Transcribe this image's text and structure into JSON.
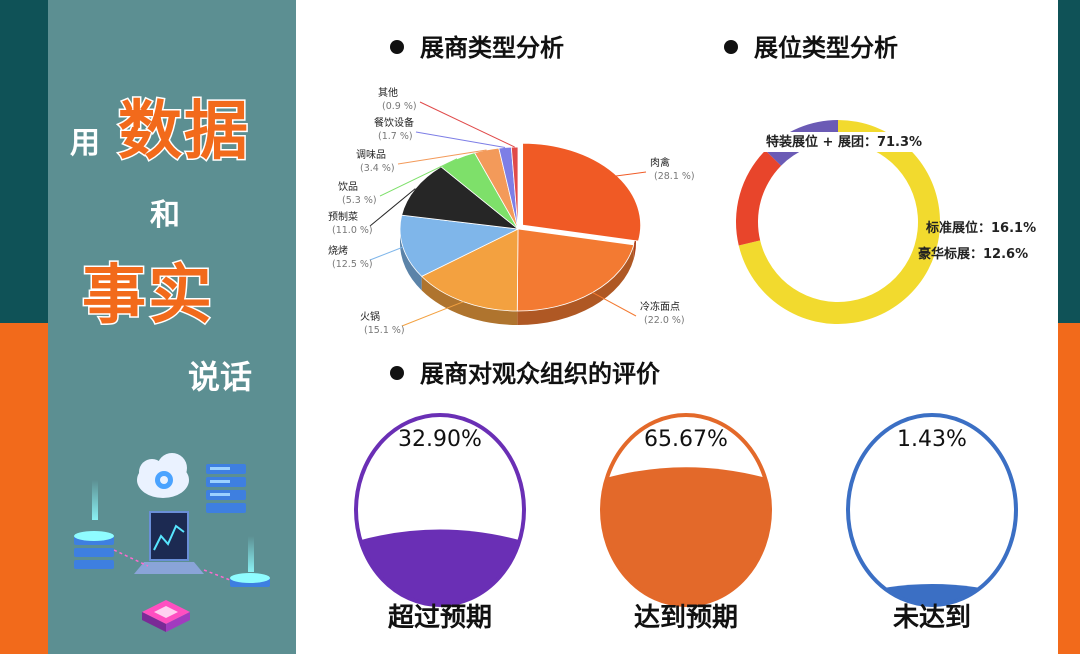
{
  "slogan": {
    "line1": "用",
    "line2": "数据",
    "line3": "和",
    "line4": "事实",
    "line5": "说话"
  },
  "colors": {
    "teal_dark": "#0f5257",
    "orange": "#f26a1b",
    "panel": "#5c8f92",
    "yellow": "#f2da2e",
    "purple": "#6a2fb5",
    "blue": "#3b6fc4"
  },
  "illustration_icons": [
    "cloud-icon",
    "server-stack-icon",
    "laptop-chart-icon",
    "chip-icon"
  ],
  "section_titles": {
    "exhibitor_types": "展商类型分析",
    "booth_types": "展位类型分析",
    "audience_eval": "展商对观众组织的评价"
  },
  "chart_data": [
    {
      "type": "pie",
      "title": "展商类型分析",
      "slices": [
        {
          "label": "肉禽",
          "value_text": "(28.1 %)",
          "value": 28.1,
          "color": "#f05a25"
        },
        {
          "label": "冷冻面点",
          "value_text": "(22.0 %)",
          "value": 22.0,
          "color": "#f37a32"
        },
        {
          "label": "火锅",
          "value_text": "(15.1 %)",
          "value": 15.1,
          "color": "#f3a140"
        },
        {
          "label": "烧烤",
          "value_text": "(12.5 %)",
          "value": 12.5,
          "color": "#7fb6ea"
        },
        {
          "label": "预制菜",
          "value_text": "(11.0 %)",
          "value": 11.0,
          "color": "#262626"
        },
        {
          "label": "饮品",
          "value_text": "(5.3 %)",
          "value": 5.3,
          "color": "#7ee06a"
        },
        {
          "label": "调味品",
          "value_text": "(3.4 %)",
          "value": 3.4,
          "color": "#f39a5a"
        },
        {
          "label": "餐饮设备",
          "value_text": "(1.7 %)",
          "value": 1.7,
          "color": "#7d7ee6"
        },
        {
          "label": "其他",
          "value_text": "(0.9 %)",
          "value": 0.9,
          "color": "#e04a4a"
        }
      ]
    },
    {
      "type": "pie",
      "title": "展位类型分析",
      "slices": [
        {
          "label": "特装展位 + 展团：71.3%",
          "value": 71.3,
          "color": "#f2da2e"
        },
        {
          "label": "标准展位：16.1%",
          "value": 16.1,
          "color": "#e8452b"
        },
        {
          "label": "豪华标展：12.6%",
          "value": 12.6,
          "color": "#6b5bb5"
        }
      ]
    },
    {
      "type": "bar",
      "title": "展商对观众组织的评价",
      "categories": [
        "超过预期",
        "达到预期",
        "未达到"
      ],
      "value_labels": [
        "32.90%",
        "65.67%",
        "1.43%"
      ],
      "values": [
        32.9,
        65.67,
        1.43
      ],
      "colors": [
        "#6a2fb5",
        "#e3692a",
        "#3b6fc4"
      ]
    }
  ]
}
